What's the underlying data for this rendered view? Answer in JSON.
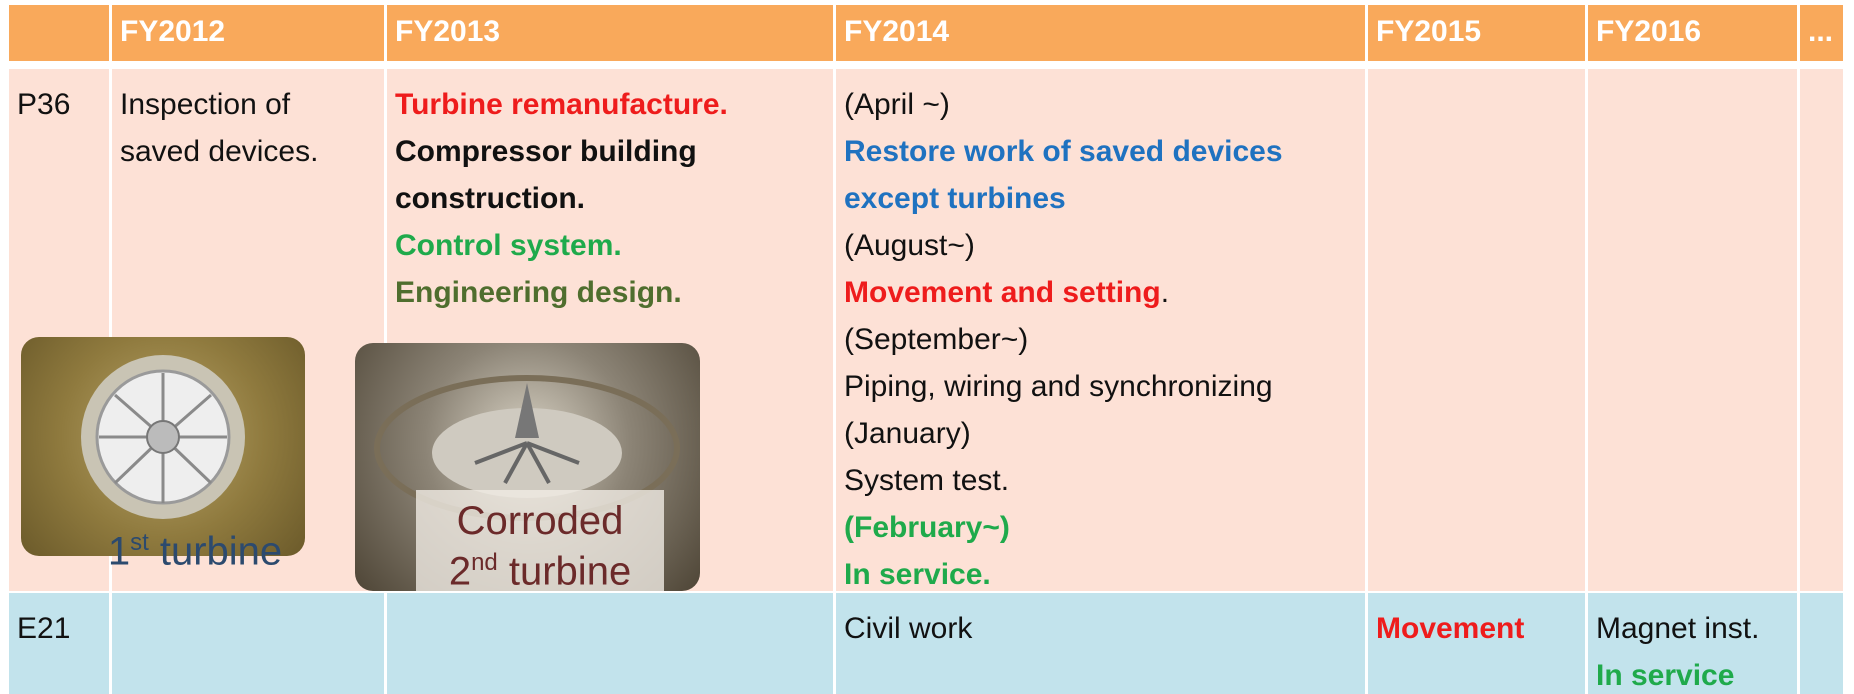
{
  "table": {
    "header": [
      "FY2012",
      "FY2013",
      "FY2014",
      "FY2015",
      "FY2016",
      "..."
    ],
    "rows": [
      {
        "label": "P36",
        "cells": [
          [
            [
              {
                "text": "Inspection of"
              }
            ],
            [
              {
                "text": "saved devices."
              }
            ]
          ],
          [
            [
              {
                "text": "Turbine remanufacture.",
                "style": "red"
              }
            ],
            [
              {
                "text": "Compressor building",
                "style": "bold"
              }
            ],
            [
              {
                "text": "construction.",
                "style": "bold"
              }
            ],
            [
              {
                "text": "Control system.",
                "style": "green"
              }
            ],
            [
              {
                "text": "Engineering design.",
                "style": "olive"
              }
            ]
          ],
          [
            [
              {
                "text": "(April ~)"
              }
            ],
            [
              {
                "text": "Restore work of saved devices",
                "style": "blue"
              }
            ],
            [
              {
                "text": "except turbines",
                "style": "blue"
              }
            ],
            [
              {
                "text": "(August~)"
              }
            ],
            [
              {
                "text": "Movement and setting",
                "style": "red"
              },
              {
                "text": "."
              }
            ],
            [
              {
                "text": "(September~)"
              }
            ],
            [
              {
                "text": "Piping, wiring and synchronizing"
              }
            ],
            [
              {
                "text": "(January)"
              }
            ],
            [
              {
                "text": "System test."
              }
            ],
            [
              {
                "text": "(February~)",
                "style": "green"
              }
            ],
            [
              {
                "text": "In service.",
                "style": "green"
              }
            ]
          ],
          [],
          [],
          []
        ]
      },
      {
        "label": "E21",
        "cells": [
          [],
          [],
          [
            [
              {
                "text": "Civil work"
              }
            ]
          ],
          [
            [
              {
                "text": "Movement",
                "style": "red"
              }
            ]
          ],
          [
            [
              {
                "text": "Magnet inst."
              }
            ],
            [
              {
                "text": "In service",
                "style": "green"
              }
            ]
          ],
          []
        ]
      }
    ]
  },
  "photos": [
    {
      "caption": [
        [
          {
            "text": "1"
          },
          {
            "text": "st",
            "sup": true
          },
          {
            "text": " turbine"
          }
        ]
      ]
    },
    {
      "caption": [
        [
          {
            "text": "Corroded"
          }
        ],
        [
          {
            "text": "2"
          },
          {
            "text": "nd",
            "sup": true
          },
          {
            "text": " turbine"
          }
        ]
      ]
    }
  ]
}
